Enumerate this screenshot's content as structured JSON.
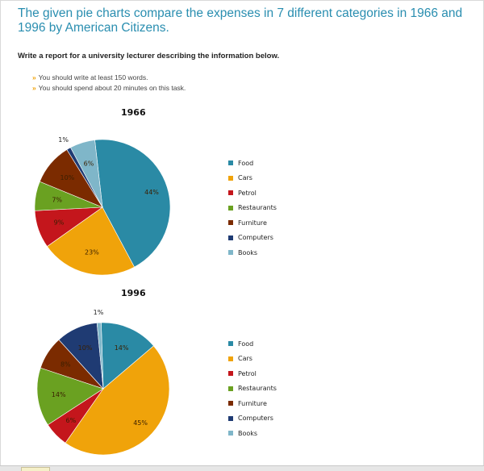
{
  "heading": "The given pie charts compare the expenses in 7 different categories in 1966 and 1996 by American Citizens.",
  "instruction": "Write a report for a university lecturer describing the information below.",
  "bullets": [
    "You should write at least 150 words.",
    "You should spend about 20 minutes on this task."
  ],
  "bullet_marker": "»",
  "colors": {
    "Food": "#2a8aa5",
    "Cars": "#f0a30a",
    "Petrol": "#c4161c",
    "Restaurants": "#6aa121",
    "Furniture": "#7b2b00",
    "Computers": "#1f3b73",
    "Books": "#7fb6c9"
  },
  "chart_data": [
    {
      "type": "pie",
      "title": "1966",
      "labels": [
        "Food",
        "Cars",
        "Petrol",
        "Restaurants",
        "Furniture",
        "Computers",
        "Books"
      ],
      "values": [
        44,
        23,
        9,
        7,
        10,
        1,
        6
      ],
      "value_labels": [
        "44%",
        "23%",
        "9%",
        "7%",
        "10%",
        "1%",
        "6%"
      ],
      "legend_position": "right"
    },
    {
      "type": "pie",
      "title": "1996",
      "labels": [
        "Food",
        "Cars",
        "Petrol",
        "Restaurants",
        "Furniture",
        "Computers",
        "Books"
      ],
      "values": [
        14,
        45,
        6,
        14,
        8,
        10,
        1
      ],
      "value_labels": [
        "14%",
        "45%",
        "6%",
        "14%",
        "8%",
        "10%",
        "1%"
      ],
      "legend_position": "right"
    }
  ]
}
